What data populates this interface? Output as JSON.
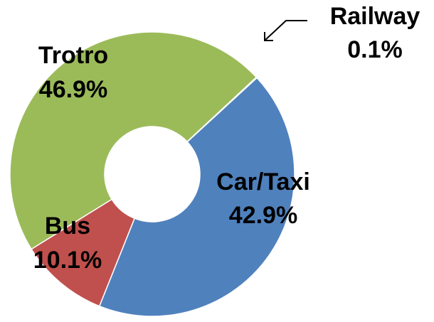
{
  "chart_data": {
    "type": "donut",
    "categories": [
      "Railway",
      "Car/Taxi",
      "Bus",
      "Trotro"
    ],
    "values": [
      0.1,
      42.9,
      10.1,
      46.9
    ],
    "value_labels": [
      "0.1%",
      "42.9%",
      "10.1%",
      "46.9%"
    ],
    "colors": [
      "#8064a2",
      "#4f81bd",
      "#c0504d",
      "#9bbb59"
    ]
  }
}
